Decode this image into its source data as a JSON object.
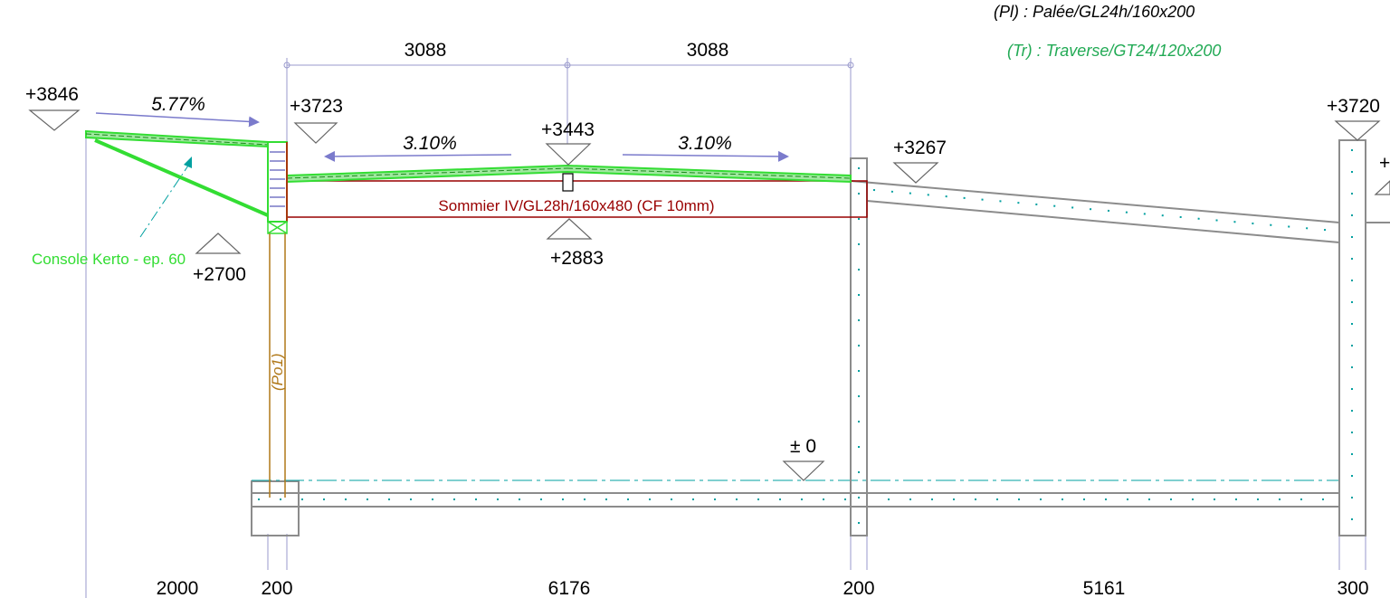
{
  "legend": {
    "pl": "(Pl) : Palée/GL24h/160x200",
    "tr": "(Tr) : Traverse/GT24/120x200"
  },
  "dimensions_top": [
    "3088",
    "3088"
  ],
  "dimensions_bottom": [
    "2000",
    "200",
    "6176",
    "200",
    "5161",
    "300"
  ],
  "levels": {
    "l3846": "+3846",
    "l3723": "+3723",
    "l3443": "+3443",
    "l3267": "+3267",
    "l3720": "+3720",
    "l2700": "+2700",
    "l2883": "+2883",
    "l0": "± 0",
    "cut": "+"
  },
  "slopes": {
    "cantilever": "5.77%",
    "left_pitch": "3.10%",
    "right_pitch": "3.10%"
  },
  "labels": {
    "beam": "Sommier IV/GL28h/160x480 (CF 10mm)",
    "console": "Console Kerto - ep. 60",
    "post": "(Po1)"
  },
  "colors": {
    "green_member": "#33dd33",
    "dark_red": "#990000",
    "teal": "#00a0a0",
    "concrete": "#8c8c8c",
    "arrow": "#7b7bcc",
    "post_brown": "#b07818"
  }
}
